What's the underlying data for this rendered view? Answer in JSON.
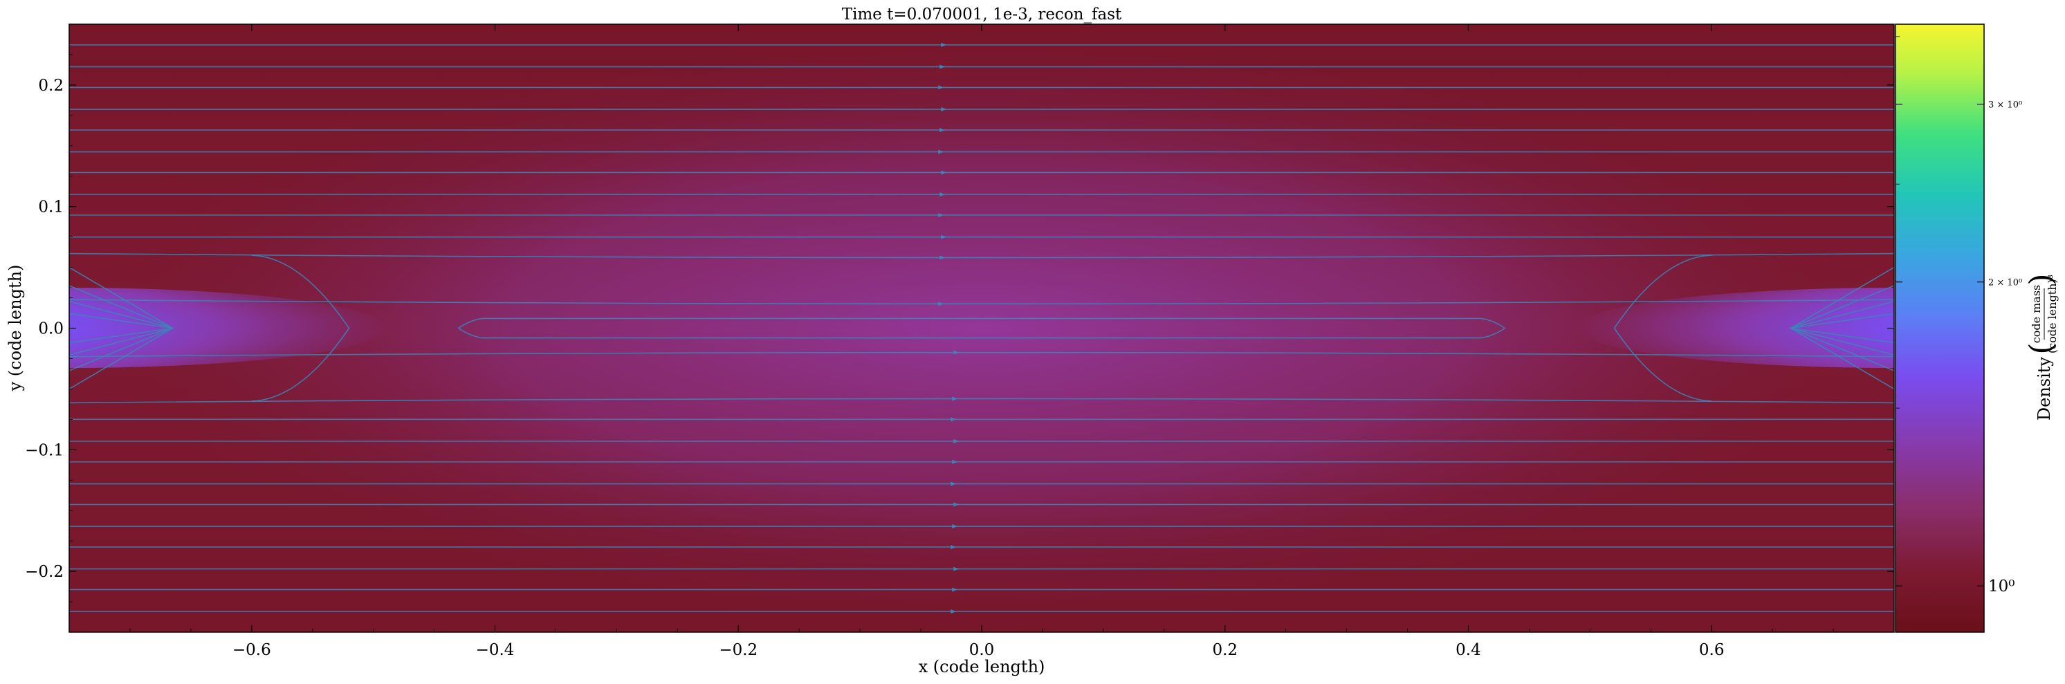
{
  "chart_data": {
    "type": "heatmap",
    "title": "Time t=0.070001, 1e-3, recon_fast",
    "xlabel": "x  (code length)",
    "ylabel": "y  (code length)",
    "xlim": [
      -0.75,
      0.75
    ],
    "ylim": [
      -0.25,
      0.25
    ],
    "xticks": [
      {
        "value": -0.6,
        "label": "−0.6"
      },
      {
        "value": -0.4,
        "label": "−0.4"
      },
      {
        "value": -0.2,
        "label": "−0.2"
      },
      {
        "value": 0.0,
        "label": "0.0"
      },
      {
        "value": 0.2,
        "label": "0.2"
      },
      {
        "value": 0.4,
        "label": "0.4"
      },
      {
        "value": 0.6,
        "label": "0.6"
      }
    ],
    "yticks": [
      {
        "value": 0.2,
        "label": "0.2"
      },
      {
        "value": 0.1,
        "label": "0.1"
      },
      {
        "value": 0.0,
        "label": "0.0"
      },
      {
        "value": -0.1,
        "label": "−0.1"
      },
      {
        "value": -0.2,
        "label": "−0.2"
      }
    ],
    "colorbar": {
      "label_prefix": "Density",
      "label_num": "code mass",
      "label_den": "(code length)³",
      "scale": "log",
      "range": [
        0.9,
        3.6
      ],
      "ticks": [
        {
          "value": 1.0,
          "label": "10⁰",
          "style": "large"
        },
        {
          "value": 2.0,
          "label": "2 × 10⁰",
          "style": "small"
        },
        {
          "value": 3.0,
          "label": "3 × 10⁰",
          "style": "small"
        }
      ],
      "colormap": [
        {
          "stop": 0.0,
          "color": "#6b0f1a"
        },
        {
          "stop": 0.1,
          "color": "#7d1a32"
        },
        {
          "stop": 0.2,
          "color": "#8a2d6a"
        },
        {
          "stop": 0.3,
          "color": "#8839a8"
        },
        {
          "stop": 0.42,
          "color": "#7a4df0"
        },
        {
          "stop": 0.52,
          "color": "#5b7ff5"
        },
        {
          "stop": 0.62,
          "color": "#3aa6e0"
        },
        {
          "stop": 0.72,
          "color": "#22c6b8"
        },
        {
          "stop": 0.82,
          "color": "#3fe07e"
        },
        {
          "stop": 0.92,
          "color": "#b7f246"
        },
        {
          "stop": 1.0,
          "color": "#f5f52f"
        }
      ]
    },
    "field_lines": {
      "color": "#3a86b8",
      "horizontal_y": [
        -0.233,
        -0.215,
        -0.198,
        -0.18,
        -0.163,
        -0.145,
        -0.128,
        -0.11,
        -0.093,
        -0.075,
        -0.058,
        -0.02,
        0.02,
        0.058,
        0.075,
        0.093,
        0.11,
        0.128,
        0.145,
        0.163,
        0.18,
        0.198,
        0.215,
        0.233
      ],
      "nested_loops": [
        {
          "x_outer": -0.6,
          "x_tip": -0.52,
          "y_half": 0.06
        },
        {
          "x_outer": -0.41,
          "x_tip": -0.43,
          "y_half": 0.008
        },
        {
          "x_outer": 0.41,
          "x_tip": 0.43,
          "y_half": 0.008
        },
        {
          "x_outer": 0.6,
          "x_tip": 0.52,
          "y_half": 0.06
        }
      ],
      "x_point_bands": [
        {
          "x_edge": -0.75,
          "x_tip": -0.665
        },
        {
          "x_edge": 0.75,
          "x_tip": 0.665
        }
      ],
      "arrow_column_x": -0.03
    }
  }
}
